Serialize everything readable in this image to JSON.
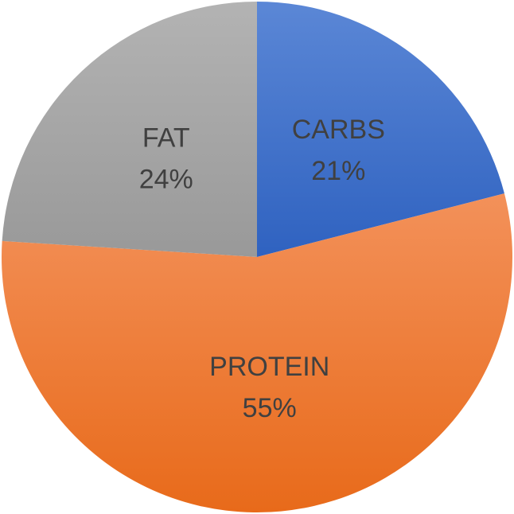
{
  "chart_data": {
    "type": "pie",
    "title": "",
    "start_angle_deg": 0,
    "direction": "clockwise",
    "labels_inside": true,
    "slices": [
      {
        "category": "CARBS",
        "label": "CARBS",
        "percent_label": "21%",
        "value": 21,
        "color": "#4472C4"
      },
      {
        "category": "PROTEIN",
        "label": "PROTEIN",
        "percent_label": "55%",
        "value": 55,
        "color": "#ED7D31"
      },
      {
        "category": "FAT",
        "label": "FAT",
        "percent_label": "24%",
        "value": 24,
        "color": "#A5A5A5"
      }
    ]
  }
}
